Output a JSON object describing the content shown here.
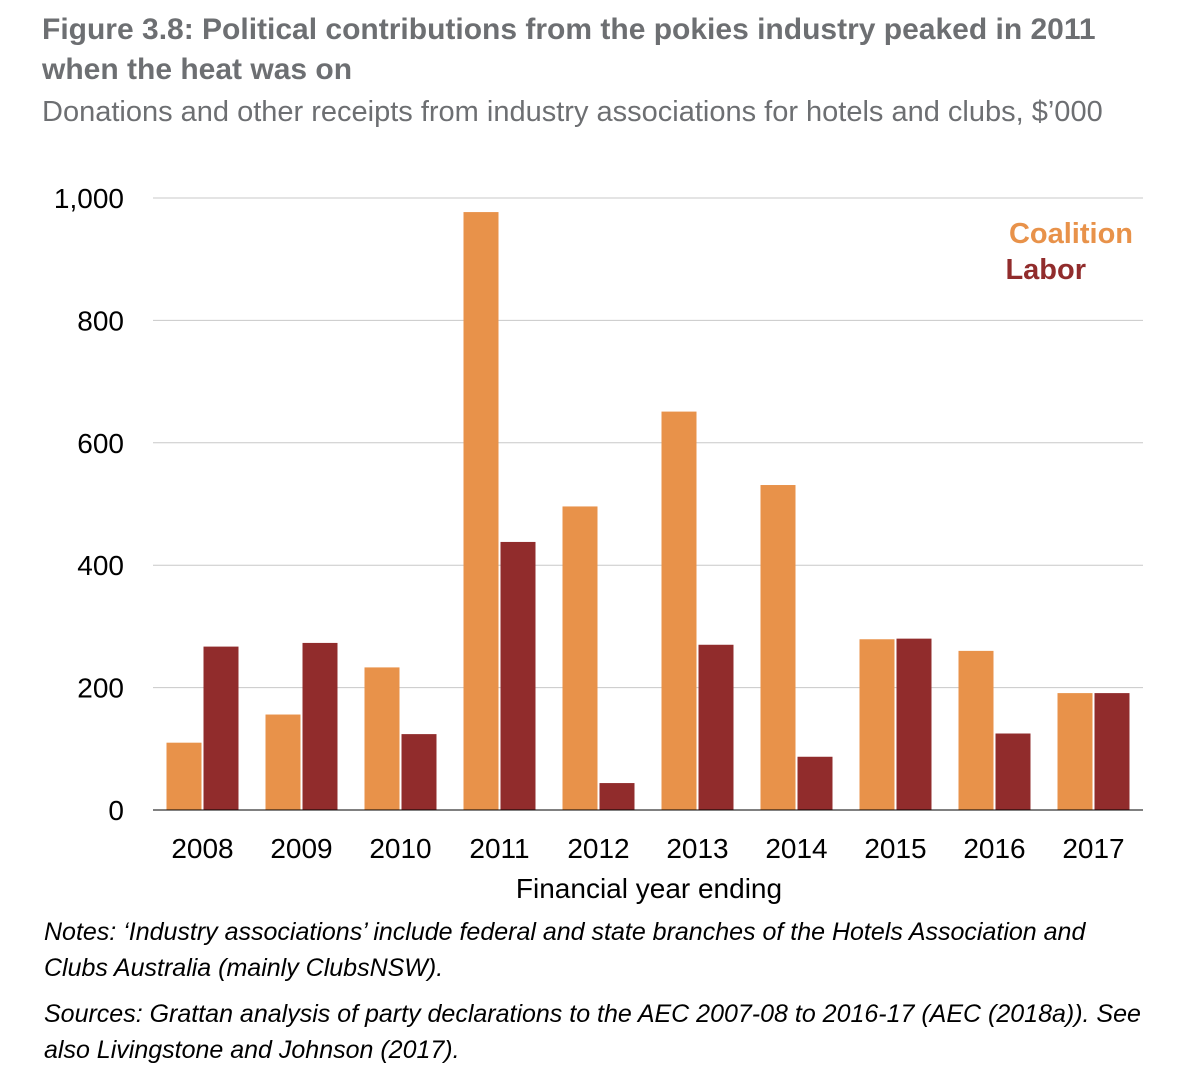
{
  "figure": {
    "title": "Figure 3.8: Political contributions from the pokies industry peaked in 2011 when the heat was on",
    "subtitle": "Donations and other receipts from industry associations for hotels and clubs, $’000",
    "notes": "Notes: ‘Industry associations’ include federal and state branches of the Hotels Association and Clubs Australia (mainly ClubsNSW).",
    "sources": "Sources: Grattan analysis of party declarations to the AEC 2007-08 to 2016-17 (AEC (2018a)). See also Livingstone and Johnson (2017)."
  },
  "chart_data": {
    "type": "bar",
    "categories": [
      "2008",
      "2009",
      "2010",
      "2011",
      "2012",
      "2013",
      "2014",
      "2015",
      "2016",
      "2017"
    ],
    "series": [
      {
        "name": "Coalition",
        "color": "#e8924a",
        "values": [
          110,
          156,
          233,
          977,
          496,
          651,
          531,
          279,
          260,
          191
        ]
      },
      {
        "name": "Labor",
        "color": "#912c2c",
        "values": [
          267,
          273,
          124,
          438,
          44,
          270,
          87,
          280,
          125,
          191
        ]
      }
    ],
    "xlabel": "Financial year ending",
    "ylabel": "",
    "ylim": [
      0,
      1000
    ],
    "yticks": [
      0,
      200,
      400,
      600,
      800,
      1000
    ],
    "ytick_labels": [
      "0",
      "200",
      "400",
      "600",
      "800",
      "1,000"
    ],
    "grid": true,
    "legend_position": "top-right"
  }
}
